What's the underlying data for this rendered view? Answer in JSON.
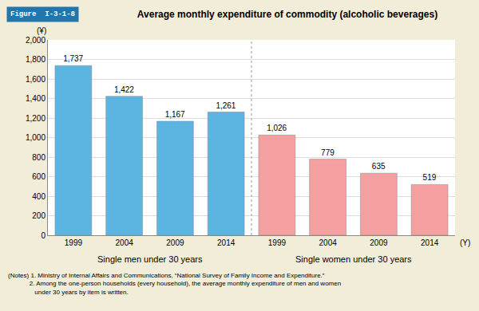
{
  "chart_data": {
    "type": "bar",
    "title": "Average monthly expenditure of commodity (alcoholic beverages)",
    "annotations": [
      "Figure  I-3-1-8"
    ],
    "notes": [
      "(Notes) 1. Ministry of Internal Affairs and Communications, “National Survey of Family Income and Expenditure.”",
      "            2. Among the one-person households (every household), the average monthly expenditure of men and women",
      "               under 30 years by item is written."
    ],
    "ylabel": "(¥)",
    "xlabel": "(Y)",
    "categories": [
      "1999",
      "2004",
      "2009",
      "2014",
      "1999",
      "2004",
      "2009",
      "2014"
    ],
    "series": [
      {
        "name": "Single men under 30 years",
        "color": "#5BB5E0",
        "values": [
          1737,
          1422,
          1167,
          1261,
          null,
          null,
          null,
          null
        ],
        "value_labels": [
          "1,737",
          "1,422",
          "1,167",
          "1,261",
          null,
          null,
          null,
          null
        ]
      },
      {
        "name": "Single women under 30 years",
        "color": "#F4A0A0",
        "values": [
          null,
          null,
          null,
          null,
          1026,
          779,
          635,
          519
        ],
        "value_labels": [
          null,
          null,
          null,
          null,
          "1,026",
          "779",
          "635",
          "519"
        ]
      }
    ],
    "ylim": [
      0,
      2000
    ],
    "yticks": [
      0,
      200,
      400,
      600,
      800,
      {
        "value": 1000,
        "label": "1,000"
      },
      {
        "value": 1200,
        "label": "1,200"
      },
      {
        "value": 1400,
        "label": "1,400"
      },
      {
        "value": 1600,
        "label": "1,600"
      },
      {
        "value": 1800,
        "label": "1,800"
      },
      {
        "value": 2000,
        "label": "2,000"
      }
    ],
    "grid": true,
    "data_labels": true
  }
}
